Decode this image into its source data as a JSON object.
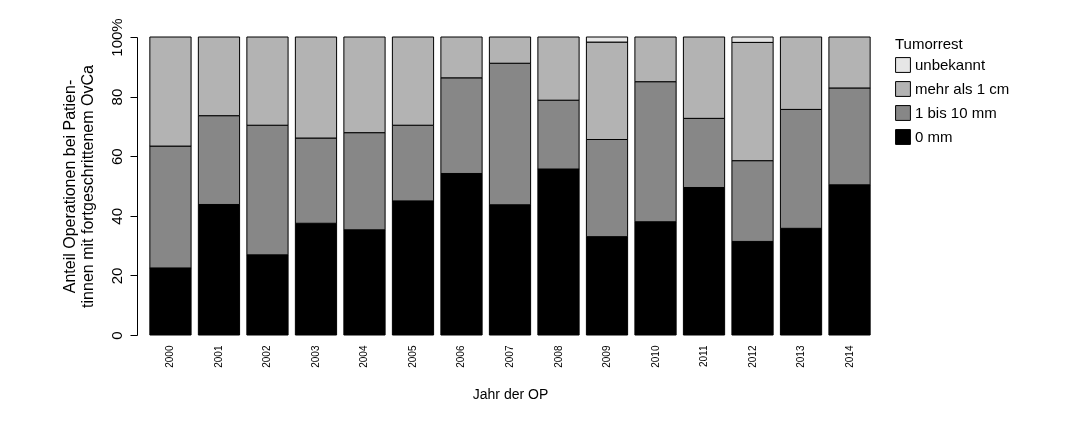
{
  "chart_data": {
    "type": "bar",
    "stacked": true,
    "xlabel": "Jahr der OP",
    "ylabel": "Anteil Operationen bei Patien-\ntinnen mit fortgeschrittenem OvCa",
    "legend_title": "Tumorrest",
    "legend": "top right",
    "grid": false,
    "categories": [
      "2000",
      "2001",
      "2002",
      "2003",
      "2004",
      "2005",
      "2006",
      "2007",
      "2008",
      "2009",
      "2010",
      "2011",
      "2012",
      "2013",
      "2014"
    ],
    "ylim": [
      0,
      100
    ],
    "yticks": [
      0,
      20,
      40,
      60,
      80,
      {
        "value": 100,
        "label": "100%"
      }
    ],
    "series": [
      {
        "name": "0 mm",
        "color": "#000000",
        "values": [
          22.5,
          43.8,
          26.9,
          37.5,
          35.3,
          45.0,
          54.2,
          43.7,
          55.7,
          33.0,
          38.0,
          49.5,
          31.4,
          35.8,
          50.4
        ]
      },
      {
        "name": "1 bis 10 mm",
        "color": "#878787",
        "values": [
          40.9,
          29.8,
          43.5,
          28.6,
          32.6,
          25.4,
          32.1,
          47.5,
          23.1,
          32.6,
          47.0,
          23.2,
          27.1,
          39.9,
          32.5
        ]
      },
      {
        "name": "mehr als 1 cm",
        "color": "#b3b3b3",
        "values": [
          36.6,
          26.4,
          29.6,
          33.9,
          32.1,
          29.6,
          13.7,
          8.8,
          21.2,
          32.7,
          15.0,
          27.3,
          39.7,
          24.3,
          17.1
        ]
      },
      {
        "name": "unbekannt",
        "color": "#e6e6e6",
        "values": [
          null,
          null,
          null,
          null,
          null,
          null,
          null,
          null,
          null,
          1.7,
          null,
          null,
          1.8,
          null,
          null
        ]
      }
    ]
  }
}
